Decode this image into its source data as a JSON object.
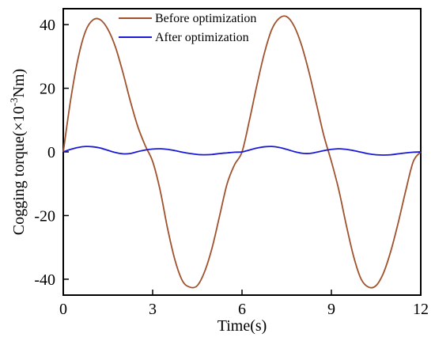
{
  "chart_data": {
    "type": "line",
    "xlabel": "Time(s)",
    "ylabel_main": "Cogging torque(×10",
    "ylabel_sup": "-3",
    "ylabel_unit": "Nm)",
    "xlim": [
      0,
      12
    ],
    "ylim": [
      -45,
      45
    ],
    "xticks": [
      0,
      3,
      6,
      9,
      12
    ],
    "xtick_labels": [
      "0",
      "3",
      "6",
      "9",
      "12"
    ],
    "yticks": [
      -40,
      -20,
      0,
      20,
      40
    ],
    "ytick_labels": [
      "-40",
      "-20",
      "0",
      "20",
      "40"
    ],
    "legend_position": "top-center",
    "series": [
      {
        "name": "Before optimization",
        "color": "#a0522d",
        "x": [
          0,
          0.25,
          0.5,
          0.75,
          1.0,
          1.25,
          1.5,
          1.75,
          2.0,
          2.25,
          2.5,
          2.75,
          3.0,
          3.25,
          3.5,
          3.75,
          4.0,
          4.25,
          4.5,
          4.75,
          5.0,
          5.25,
          5.5,
          5.75,
          6.0,
          6.25,
          6.5,
          6.75,
          7.0,
          7.25,
          7.5,
          7.75,
          8.0,
          8.25,
          8.5,
          8.75,
          9.0,
          9.25,
          9.5,
          9.75,
          10.0,
          10.25,
          10.5,
          10.75,
          11.0,
          11.25,
          11.5,
          11.75,
          12.0
        ],
        "values": [
          0,
          16.5,
          29.5,
          38.0,
          41.5,
          41.5,
          38.5,
          33.0,
          25.0,
          16.0,
          8.0,
          2.0,
          -3.0,
          -12.0,
          -24.0,
          -34.0,
          -40.5,
          -42.5,
          -42.0,
          -37.5,
          -30.0,
          -20.0,
          -10.0,
          -4.0,
          0,
          10.0,
          21.0,
          31.0,
          38.5,
          42.0,
          42.5,
          39.5,
          33.5,
          25.0,
          15.0,
          5.0,
          -3.0,
          -12.0,
          -23.0,
          -33.0,
          -40.0,
          -42.5,
          -42.0,
          -38.0,
          -31.0,
          -22.0,
          -12.0,
          -3.0,
          0
        ]
      },
      {
        "name": "After optimization",
        "color": "#1a1ad6",
        "x": [
          0,
          0.25,
          0.5,
          0.75,
          1.0,
          1.25,
          1.5,
          1.75,
          2.0,
          2.25,
          2.5,
          2.75,
          3.0,
          3.25,
          3.5,
          3.75,
          4.0,
          4.25,
          4.5,
          4.75,
          5.0,
          5.25,
          5.5,
          5.75,
          6.0,
          6.25,
          6.5,
          6.75,
          7.0,
          7.25,
          7.5,
          7.75,
          8.0,
          8.25,
          8.5,
          8.75,
          9.0,
          9.25,
          9.5,
          9.75,
          10.0,
          10.25,
          10.5,
          10.75,
          11.0,
          11.25,
          11.5,
          11.75,
          12.0
        ],
        "values": [
          0,
          0.8,
          1.4,
          1.7,
          1.6,
          1.2,
          0.5,
          -0.2,
          -0.6,
          -0.5,
          0.1,
          0.6,
          0.9,
          1.0,
          0.8,
          0.4,
          -0.1,
          -0.5,
          -0.8,
          -0.9,
          -0.8,
          -0.5,
          -0.3,
          -0.1,
          0,
          0.6,
          1.2,
          1.6,
          1.7,
          1.4,
          0.8,
          0.1,
          -0.4,
          -0.5,
          -0.1,
          0.4,
          0.8,
          1.0,
          0.8,
          0.4,
          -0.1,
          -0.6,
          -0.9,
          -1.0,
          -0.9,
          -0.6,
          -0.3,
          -0.1,
          0
        ]
      }
    ]
  }
}
